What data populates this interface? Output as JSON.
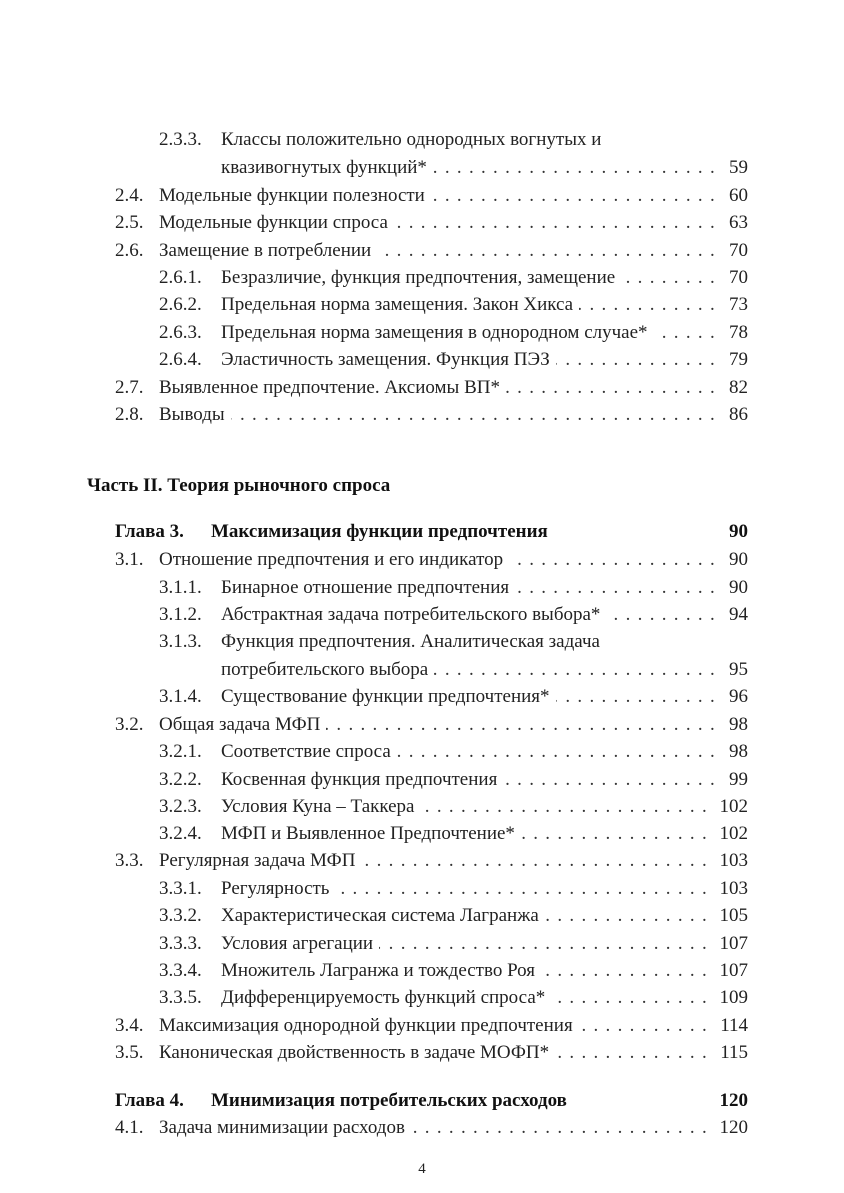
{
  "entries": [
    {
      "kind": "sub",
      "num": "2.3.3.",
      "title": "Классы положительно однородных вогнутых и",
      "cont": "квазивогнутых функций*",
      "page": "59"
    },
    {
      "kind": "sec",
      "num": "2.4.",
      "title": "Модельные функции полезности",
      "page": "60"
    },
    {
      "kind": "sec",
      "num": "2.5.",
      "title": "Модельные функции спроса",
      "page": "63"
    },
    {
      "kind": "sec",
      "num": "2.6.",
      "title": "Замещение в потреблении",
      "page": "70"
    },
    {
      "kind": "sub",
      "num": "2.6.1.",
      "title": "Безразличие, функция предпочтения, замещение",
      "page": "70"
    },
    {
      "kind": "sub",
      "num": "2.6.2.",
      "title": "Предельная норма замещения. Закон Хикса",
      "page": "73"
    },
    {
      "kind": "sub",
      "num": "2.6.3.",
      "title": "Предельная норма замещения в однородном случае*",
      "page": "78"
    },
    {
      "kind": "sub",
      "num": "2.6.4.",
      "title": "Эластичность замещения. Функция ПЭЗ",
      "page": "79"
    },
    {
      "kind": "sec",
      "num": "2.7.",
      "title": "Выявленное предпочтение. Аксиомы ВП*",
      "page": "82"
    },
    {
      "kind": "sec",
      "num": "2.8.",
      "title": "Выводы",
      "page": "86"
    },
    {
      "kind": "part",
      "title": "Часть II. Теория рыночного спроса"
    },
    {
      "kind": "chapter",
      "num": "Глава 3.",
      "title": "Максимизация функции предпочтения",
      "page": "90"
    },
    {
      "kind": "sec",
      "num": "3.1.",
      "title": "Отношение предпочтения и его индикатор",
      "page": "90"
    },
    {
      "kind": "sub",
      "num": "3.1.1.",
      "title": "Бинарное отношение предпочтения",
      "page": "90"
    },
    {
      "kind": "sub",
      "num": "3.1.2.",
      "title": "Абстрактная задача потребительского выбора*",
      "page": "94"
    },
    {
      "kind": "sub",
      "num": "3.1.3.",
      "title": "Функция предпочтения. Аналитическая задача",
      "cont": "потребительского выбора",
      "page": "95"
    },
    {
      "kind": "sub",
      "num": "3.1.4.",
      "title": "Существование функции предпочтения*",
      "page": "96"
    },
    {
      "kind": "sec",
      "num": "3.2.",
      "title": "Общая задача МФП",
      "page": "98"
    },
    {
      "kind": "sub",
      "num": "3.2.1.",
      "title": "Соответствие спроса",
      "page": "98"
    },
    {
      "kind": "sub",
      "num": "3.2.2.",
      "title": "Косвенная функция предпочтения",
      "page": "99"
    },
    {
      "kind": "sub",
      "num": "3.2.3.",
      "title": "Условия Куна – Таккера",
      "page": "102"
    },
    {
      "kind": "sub",
      "num": "3.2.4.",
      "title": "МФП и Выявленное Предпочтение*",
      "page": "102"
    },
    {
      "kind": "sec",
      "num": "3.3.",
      "title": "Регулярная задача МФП",
      "page": "103"
    },
    {
      "kind": "sub",
      "num": "3.3.1.",
      "title": "Регулярность",
      "page": "103"
    },
    {
      "kind": "sub",
      "num": "3.3.2.",
      "title": "Характеристическая система Лагранжа",
      "page": "105"
    },
    {
      "kind": "sub",
      "num": "3.3.3.",
      "title": "Условия агрегации",
      "page": "107"
    },
    {
      "kind": "sub",
      "num": "3.3.4.",
      "title": "Множитель Лагранжа и тождество Роя",
      "page": "107"
    },
    {
      "kind": "sub",
      "num": "3.3.5.",
      "title": "Дифференцируемость функций спроса*",
      "page": "109"
    },
    {
      "kind": "sec",
      "num": "3.4.",
      "title": "Максимизация однородной функции предпочтения",
      "page": "114"
    },
    {
      "kind": "sec",
      "num": "3.5.",
      "title": "Каноническая двойственность в задаче МОФП*",
      "page": "115"
    },
    {
      "kind": "chapter",
      "num": "Глава 4.",
      "title": "Минимизация потребительских расходов",
      "page": "120"
    },
    {
      "kind": "sec",
      "num": "4.1.",
      "title": "Задача минимизации расходов",
      "page": "120"
    }
  ],
  "page_number": "4"
}
